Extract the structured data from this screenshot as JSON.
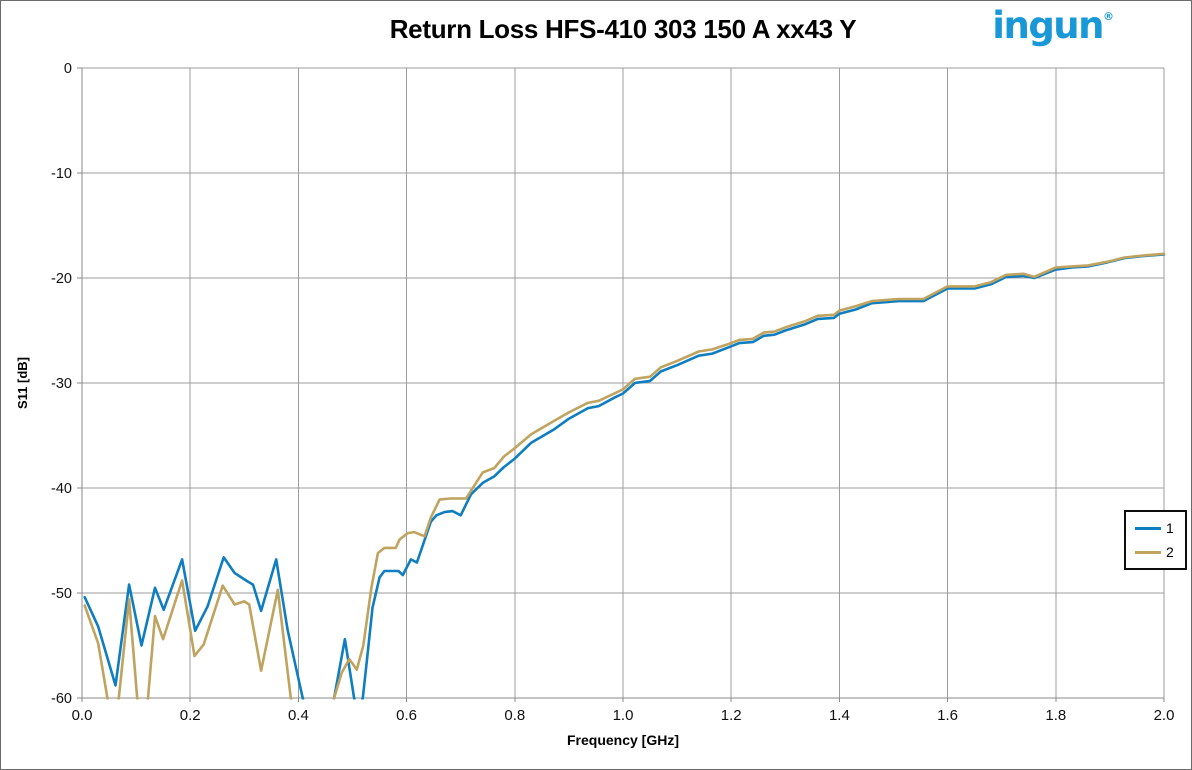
{
  "header": {
    "logo_text": "ingun",
    "logo_mark": "®",
    "logo_color": "#1898d6"
  },
  "chart_data": {
    "type": "line",
    "title": "Return Loss HFS-410 303 150 A xx43 Y",
    "xlabel": "Frequency [GHz]",
    "ylabel": "S11 [dB]",
    "xlim": [
      0,
      2.0
    ],
    "ylim": [
      -60,
      0
    ],
    "x_tick_values": [
      0,
      0.2,
      0.4,
      0.6,
      0.8,
      1.0,
      1.2,
      1.4,
      1.6,
      1.8,
      2.0
    ],
    "x_tick_labels": [
      "0.0",
      "0.2",
      "0.4",
      "0.6",
      "0.8",
      "1.0",
      "1.2",
      "1.4",
      "1.6",
      "1.8",
      "2.0"
    ],
    "y_tick_values": [
      0,
      -10,
      -20,
      -30,
      -40,
      -50,
      -60
    ],
    "y_tick_labels": [
      "0",
      "-10",
      "-20",
      "-30",
      "-40",
      "-50",
      "-60"
    ],
    "grid": true,
    "legend": {
      "position": "right-middle",
      "entries": [
        "1",
        "2"
      ]
    },
    "colors": {
      "grid": "#9c9c9c",
      "axis": "#8a8a8a",
      "series1": "#0f7ec0",
      "series2": "#bfa35f"
    },
    "series": [
      {
        "name": "1",
        "color": "#0f7ec0",
        "points": [
          [
            0.005,
            -50.4
          ],
          [
            0.03,
            -53.2
          ],
          [
            0.062,
            -58.8
          ],
          [
            0.087,
            -49.2
          ],
          [
            0.11,
            -55.0
          ],
          [
            0.135,
            -49.5
          ],
          [
            0.151,
            -51.6
          ],
          [
            0.185,
            -46.8
          ],
          [
            0.209,
            -53.6
          ],
          [
            0.232,
            -51.3
          ],
          [
            0.262,
            -46.6
          ],
          [
            0.282,
            -48.1
          ],
          [
            0.306,
            -48.9
          ],
          [
            0.316,
            -49.2
          ],
          [
            0.331,
            -51.7
          ],
          [
            0.359,
            -46.8
          ],
          [
            0.38,
            -53.5
          ],
          [
            0.408,
            -60.0
          ],
          [
            0.425,
            -63.5
          ],
          [
            0.45,
            -64.0
          ],
          [
            0.466,
            -60.0
          ],
          [
            0.486,
            -54.4
          ],
          [
            0.503,
            -60.0
          ],
          [
            0.51,
            -61.5
          ],
          [
            0.519,
            -60.0
          ],
          [
            0.528,
            -55.8
          ],
          [
            0.537,
            -51.4
          ],
          [
            0.55,
            -48.5
          ],
          [
            0.559,
            -47.9
          ],
          [
            0.585,
            -47.9
          ],
          [
            0.593,
            -48.3
          ],
          [
            0.608,
            -46.8
          ],
          [
            0.619,
            -47.1
          ],
          [
            0.645,
            -43.2
          ],
          [
            0.655,
            -42.6
          ],
          [
            0.67,
            -42.3
          ],
          [
            0.685,
            -42.2
          ],
          [
            0.7,
            -42.6
          ],
          [
            0.719,
            -40.6
          ],
          [
            0.741,
            -39.5
          ],
          [
            0.762,
            -38.9
          ],
          [
            0.78,
            -38.0
          ],
          [
            0.8,
            -37.2
          ],
          [
            0.83,
            -35.7
          ],
          [
            0.873,
            -34.4
          ],
          [
            0.9,
            -33.4
          ],
          [
            0.935,
            -32.4
          ],
          [
            0.955,
            -32.2
          ],
          [
            0.984,
            -31.4
          ],
          [
            1.0,
            -31.0
          ],
          [
            1.022,
            -30.0
          ],
          [
            1.05,
            -29.8
          ],
          [
            1.07,
            -28.9
          ],
          [
            1.1,
            -28.3
          ],
          [
            1.14,
            -27.4
          ],
          [
            1.165,
            -27.2
          ],
          [
            1.2,
            -26.5
          ],
          [
            1.215,
            -26.2
          ],
          [
            1.24,
            -26.1
          ],
          [
            1.26,
            -25.5
          ],
          [
            1.28,
            -25.4
          ],
          [
            1.3,
            -25.0
          ],
          [
            1.337,
            -24.4
          ],
          [
            1.36,
            -23.9
          ],
          [
            1.39,
            -23.8
          ],
          [
            1.4,
            -23.4
          ],
          [
            1.43,
            -23.0
          ],
          [
            1.46,
            -22.4
          ],
          [
            1.51,
            -22.2
          ],
          [
            1.555,
            -22.2
          ],
          [
            1.6,
            -21.0
          ],
          [
            1.65,
            -21.0
          ],
          [
            1.68,
            -20.6
          ],
          [
            1.708,
            -19.9
          ],
          [
            1.74,
            -19.8
          ],
          [
            1.76,
            -20.0
          ],
          [
            1.8,
            -19.2
          ],
          [
            1.83,
            -19.0
          ],
          [
            1.86,
            -18.9
          ],
          [
            1.896,
            -18.5
          ],
          [
            1.927,
            -18.1
          ],
          [
            1.964,
            -17.9
          ],
          [
            2.0,
            -17.75
          ]
        ]
      },
      {
        "name": "2",
        "color": "#bfa35f",
        "points": [
          [
            0.005,
            -51.2
          ],
          [
            0.03,
            -54.8
          ],
          [
            0.047,
            -60.0
          ],
          [
            0.057,
            -62.5
          ],
          [
            0.068,
            -60.0
          ],
          [
            0.087,
            -50.6
          ],
          [
            0.102,
            -60.0
          ],
          [
            0.112,
            -63.0
          ],
          [
            0.122,
            -60.0
          ],
          [
            0.135,
            -52.2
          ],
          [
            0.15,
            -54.4
          ],
          [
            0.185,
            -48.8
          ],
          [
            0.208,
            -56.0
          ],
          [
            0.225,
            -54.9
          ],
          [
            0.26,
            -49.3
          ],
          [
            0.282,
            -51.1
          ],
          [
            0.3,
            -50.8
          ],
          [
            0.309,
            -51.1
          ],
          [
            0.331,
            -57.4
          ],
          [
            0.362,
            -49.7
          ],
          [
            0.386,
            -60.0
          ],
          [
            0.41,
            -64.0
          ],
          [
            0.445,
            -64.0
          ],
          [
            0.466,
            -60.0
          ],
          [
            0.48,
            -57.6
          ],
          [
            0.494,
            -56.3
          ],
          [
            0.508,
            -57.3
          ],
          [
            0.52,
            -55.0
          ],
          [
            0.535,
            -49.5
          ],
          [
            0.547,
            -46.2
          ],
          [
            0.559,
            -45.7
          ],
          [
            0.58,
            -45.7
          ],
          [
            0.587,
            -44.9
          ],
          [
            0.602,
            -44.3
          ],
          [
            0.614,
            -44.2
          ],
          [
            0.633,
            -44.6
          ],
          [
            0.645,
            -42.8
          ],
          [
            0.661,
            -41.1
          ],
          [
            0.68,
            -41.0
          ],
          [
            0.71,
            -41.0
          ],
          [
            0.731,
            -39.3
          ],
          [
            0.741,
            -38.5
          ],
          [
            0.762,
            -38.1
          ],
          [
            0.78,
            -37.0
          ],
          [
            0.8,
            -36.2
          ],
          [
            0.83,
            -34.9
          ],
          [
            0.873,
            -33.6
          ],
          [
            0.9,
            -32.8
          ],
          [
            0.935,
            -31.9
          ],
          [
            0.955,
            -31.7
          ],
          [
            0.984,
            -31.0
          ],
          [
            1.0,
            -30.6
          ],
          [
            1.022,
            -29.6
          ],
          [
            1.05,
            -29.4
          ],
          [
            1.07,
            -28.5
          ],
          [
            1.1,
            -27.9
          ],
          [
            1.14,
            -27.0
          ],
          [
            1.165,
            -26.8
          ],
          [
            1.2,
            -26.2
          ],
          [
            1.215,
            -25.9
          ],
          [
            1.24,
            -25.8
          ],
          [
            1.26,
            -25.2
          ],
          [
            1.28,
            -25.1
          ],
          [
            1.3,
            -24.7
          ],
          [
            1.337,
            -24.1
          ],
          [
            1.36,
            -23.6
          ],
          [
            1.39,
            -23.5
          ],
          [
            1.4,
            -23.1
          ],
          [
            1.43,
            -22.7
          ],
          [
            1.46,
            -22.2
          ],
          [
            1.51,
            -22.0
          ],
          [
            1.555,
            -22.0
          ],
          [
            1.6,
            -20.8
          ],
          [
            1.65,
            -20.8
          ],
          [
            1.68,
            -20.4
          ],
          [
            1.708,
            -19.7
          ],
          [
            1.74,
            -19.6
          ],
          [
            1.76,
            -19.9
          ],
          [
            1.8,
            -19.0
          ],
          [
            1.83,
            -18.9
          ],
          [
            1.86,
            -18.8
          ],
          [
            1.896,
            -18.45
          ],
          [
            1.927,
            -18.05
          ],
          [
            1.964,
            -17.85
          ],
          [
            2.0,
            -17.7
          ]
        ]
      }
    ]
  }
}
